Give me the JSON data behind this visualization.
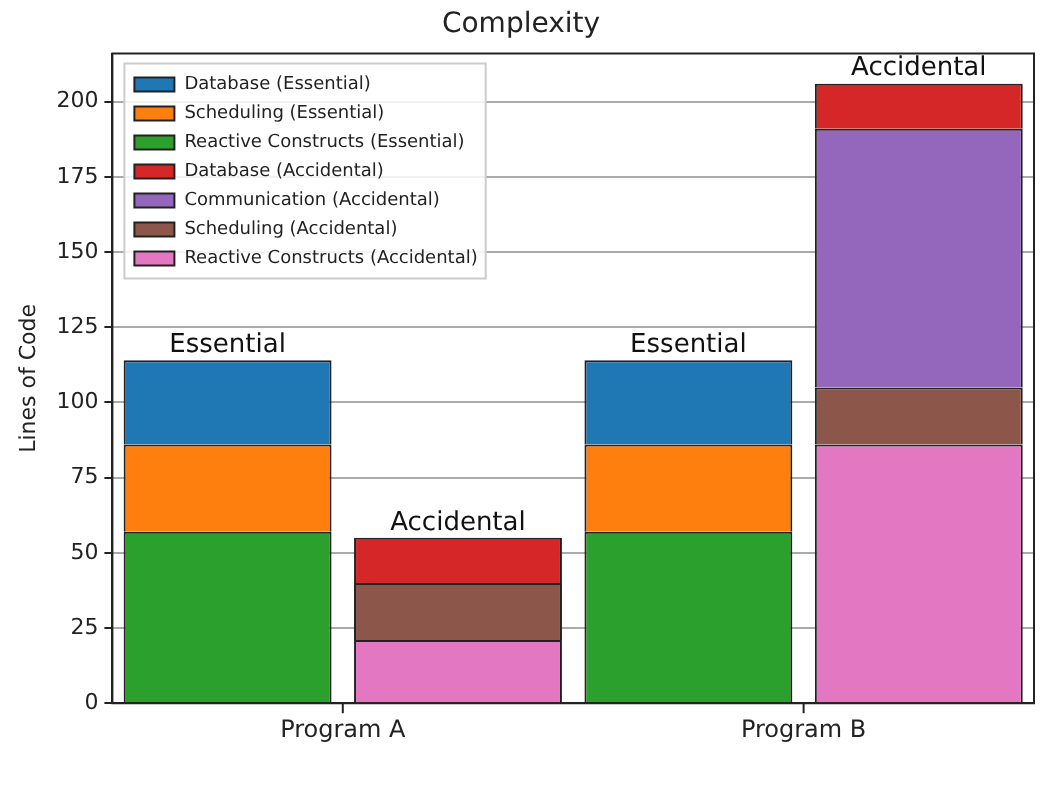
{
  "chart_data": {
    "type": "bar",
    "title": "Complexity",
    "ylabel": "Lines of Code",
    "categories": [
      "Program A",
      null,
      "Program B",
      null
    ],
    "stacked": true,
    "ylim": [
      0,
      216
    ],
    "yticks": [
      0,
      25,
      50,
      75,
      100,
      125,
      150,
      175,
      200
    ],
    "grid": "y",
    "legend": "top left",
    "annotations": [
      "Essential",
      "Accidental",
      "Essential",
      "Accidental"
    ],
    "series": [
      {
        "name": "Reactive Constructs (Essential)",
        "color": "#2ca02c",
        "values": [
          57,
          null,
          57,
          null
        ]
      },
      {
        "name": "Scheduling (Essential)",
        "color": "#ff7f0e",
        "values": [
          29,
          null,
          29,
          null
        ]
      },
      {
        "name": "Database (Essential)",
        "color": "#1f77b4",
        "values": [
          28,
          null,
          28,
          null
        ]
      },
      {
        "name": "Reactive Constructs (Accidental)",
        "color": "#e377c2",
        "values": [
          null,
          21,
          null,
          86
        ]
      },
      {
        "name": "Scheduling (Accidental)",
        "color": "#8c564b",
        "values": [
          null,
          19,
          null,
          19
        ]
      },
      {
        "name": "Communication (Accidental)",
        "color": "#9467bd",
        "values": [
          null,
          null,
          null,
          86
        ]
      },
      {
        "name": "Database (Accidental)",
        "color": "#d62728",
        "values": [
          null,
          15,
          null,
          15
        ]
      }
    ]
  }
}
